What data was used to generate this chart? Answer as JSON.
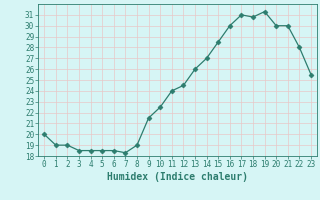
{
  "x": [
    0,
    1,
    2,
    3,
    4,
    5,
    6,
    7,
    8,
    9,
    10,
    11,
    12,
    13,
    14,
    15,
    16,
    17,
    18,
    19,
    20,
    21,
    22,
    23
  ],
  "y": [
    20,
    19,
    19,
    18.5,
    18.5,
    18.5,
    18.5,
    18.3,
    19,
    21.5,
    22.5,
    24,
    24.5,
    26,
    27,
    28.5,
    30,
    31,
    30.8,
    31.3,
    30,
    30,
    28,
    25.5
  ],
  "xlabel": "Humidex (Indice chaleur)",
  "ylim": [
    18,
    32
  ],
  "xlim": [
    -0.5,
    23.5
  ],
  "yticks": [
    18,
    19,
    20,
    21,
    22,
    23,
    24,
    25,
    26,
    27,
    28,
    29,
    30,
    31
  ],
  "xticks": [
    0,
    1,
    2,
    3,
    4,
    5,
    6,
    7,
    8,
    9,
    10,
    11,
    12,
    13,
    14,
    15,
    16,
    17,
    18,
    19,
    20,
    21,
    22,
    23
  ],
  "line_color": "#2d7d6e",
  "marker": "D",
  "marker_size": 2.5,
  "bg_color": "#d6f5f5",
  "grid_color": "#c8e8e8",
  "axis_color": "#2d7d6e",
  "tick_fontsize": 5.5,
  "label_fontsize": 7
}
